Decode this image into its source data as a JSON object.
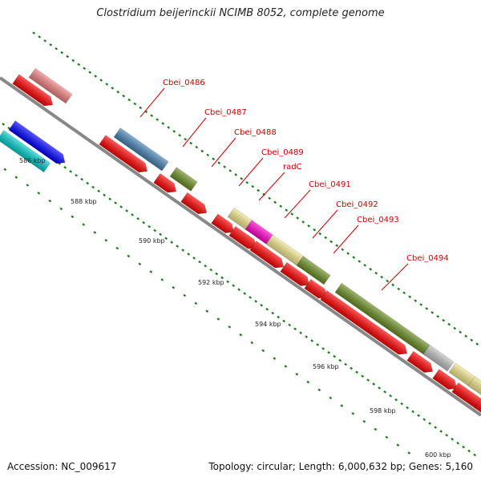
{
  "title": "Clostridium beijerinckii NCIMB 8052, complete genome",
  "footer": {
    "accession": "Accession: NC_009617",
    "summary": "Topology: circular; Length: 6,000,632 bp; Genes: 5,160"
  },
  "colors": {
    "cds_red": "#ff0000",
    "backbone": "#888888",
    "tick_green": "#1a7a1a",
    "label_red": "#cc0000",
    "olive": "#6b8e23",
    "steelblue": "#4682b4",
    "khaki": "#f0e68c",
    "magenta": "#ff00cc",
    "gray": "#c0c0c0",
    "lightcoral": "#f08080",
    "blue": "#0000ff",
    "cyan": "#00cccc"
  },
  "ruler_labels": [
    "586 kbp",
    "588 kbp",
    "590 kbp",
    "592 kbp",
    "594 kbp",
    "596 kbp",
    "598 kbp",
    "600 kbp"
  ],
  "gene_labels": [
    "Cbei_0486",
    "Cbei_0487",
    "Cbei_0488",
    "Cbei_0489",
    "radC",
    "Cbei_0491",
    "Cbei_0492",
    "Cbei_0493",
    "Cbei_0494"
  ]
}
